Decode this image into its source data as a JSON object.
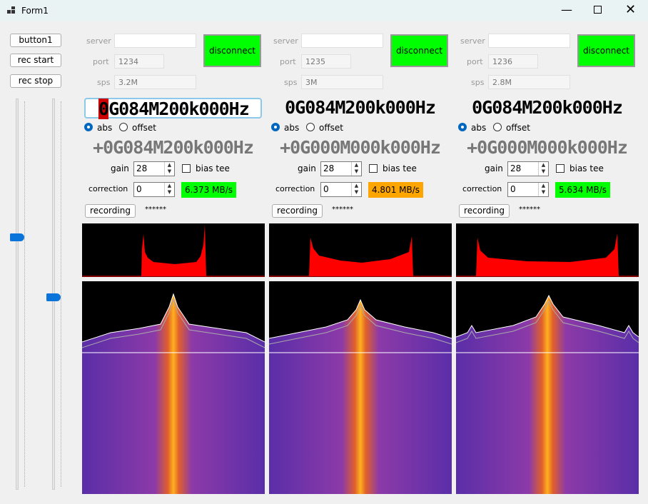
{
  "window": {
    "title": "Form1"
  },
  "sidebar": {
    "buttons": [
      "button1",
      "rec start",
      "rec stop"
    ]
  },
  "panels": [
    {
      "server_label": "server",
      "port_label": "port",
      "port": "1234",
      "sps_label": "sps",
      "sps": "3.2M",
      "button": "disconnect",
      "frequency_selected": "0",
      "frequency": "G084M200k000Hz",
      "abs": "abs",
      "offset": "offset",
      "offset_frequency": "+0G084M200k000Hz",
      "gain_label": "gain",
      "gain": "28",
      "bias_tee": "bias tee",
      "correction_label": "correction",
      "correction": "0",
      "rate": "6.373 MB/s",
      "rate_color": "#00ff00",
      "recording": "recording",
      "status": "******"
    },
    {
      "server_label": "server",
      "port_label": "port",
      "port": "1235",
      "sps_label": "sps",
      "sps": "3M",
      "button": "disconnect",
      "frequency": "0G084M200k000Hz",
      "abs": "abs",
      "offset": "offset",
      "offset_frequency": "+0G000M000k000Hz",
      "gain_label": "gain",
      "gain": "28",
      "bias_tee": "bias tee",
      "correction_label": "correction",
      "correction": "0",
      "rate": "4.801 MB/s",
      "rate_color": "#ffa500",
      "recording": "recording",
      "status": "******"
    },
    {
      "server_label": "server",
      "port_label": "port",
      "port": "1236",
      "sps_label": "sps",
      "sps": "2.8M",
      "button": "disconnect",
      "frequency": "0G084M200k000Hz",
      "abs": "abs",
      "offset": "offset",
      "offset_frequency": "+0G000M000k000Hz",
      "gain_label": "gain",
      "gain": "28",
      "bias_tee": "bias tee",
      "correction_label": "correction",
      "correction": "0",
      "rate": "5.634 MB/s",
      "rate_color": "#00ff00",
      "recording": "recording",
      "status": "******"
    }
  ]
}
